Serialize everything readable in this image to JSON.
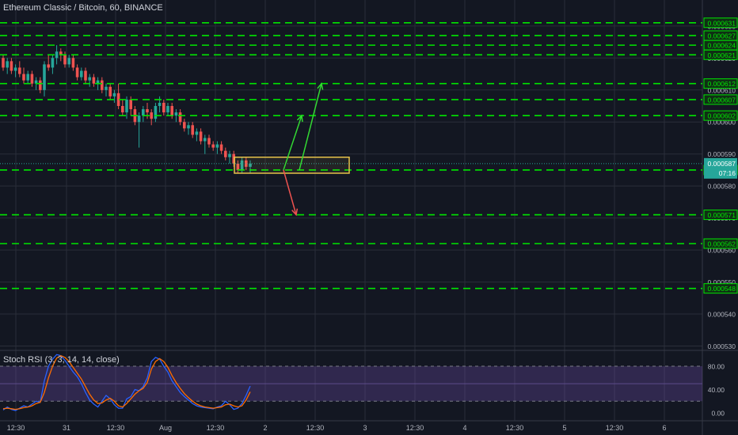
{
  "chart_title": "Ethereum Classic / Bitcoin, 60, BINANCE",
  "rsi_title": "Stoch RSI (3, 3, 14, 14, close)",
  "countdown": "07:16",
  "colors": {
    "background": "#131722",
    "grid": "#2a2e39",
    "up": "#26a69a",
    "down": "#ef5350",
    "level": "#00e600",
    "box": "#e6c24a",
    "arrow_up": "#33d933",
    "arrow_down": "#ef5350",
    "rsi_k": "#2962ff",
    "rsi_d": "#ff6d00",
    "rsi_band": "#7e57c2"
  },
  "chart_data": [
    {
      "type": "candlestick",
      "title": "Ethereum Classic / Bitcoin, 60, BINANCE",
      "ylim": [
        0.000528,
        0.000636
      ],
      "grid": true,
      "x_ticks": [
        "12:30",
        "31",
        "12:30",
        "Aug",
        "12:30",
        "2",
        "12:30",
        "3",
        "12:30",
        "4",
        "12:30",
        "5",
        "12:30",
        "6"
      ],
      "y_ticks": [
        "0.000530",
        "0.000540",
        "0.000550",
        "0.000560",
        "0.000570",
        "0.000580",
        "0.000590",
        "0.000600",
        "0.000610",
        "0.000620",
        "0.000630"
      ],
      "last_price": "0.000587",
      "horizontal_levels": [
        "0.000631",
        "0.000627",
        "0.000624",
        "0.000621",
        "0.000612",
        "0.000607",
        "0.000602",
        "0.000585",
        "0.000571",
        "0.000562",
        "0.000548"
      ],
      "candles": [
        [
          0.00062,
          0.000621,
          0.000616,
          0.000617
        ],
        [
          0.000617,
          0.00062,
          0.000615,
          0.000619
        ],
        [
          0.000619,
          0.00062,
          0.000615,
          0.000616
        ],
        [
          0.000616,
          0.000618,
          0.000614,
          0.000617
        ],
        [
          0.000617,
          0.000619,
          0.000614,
          0.000615
        ],
        [
          0.000615,
          0.000617,
          0.000612,
          0.000613
        ],
        [
          0.000613,
          0.000616,
          0.000612,
          0.000615
        ],
        [
          0.000615,
          0.000616,
          0.000611,
          0.000612
        ],
        [
          0.000612,
          0.000614,
          0.00061,
          0.000613
        ],
        [
          0.000613,
          0.000614,
          0.000609,
          0.00061
        ],
        [
          0.00061,
          0.000619,
          0.000608,
          0.000618
        ],
        [
          0.000618,
          0.000621,
          0.000616,
          0.000617
        ],
        [
          0.000617,
          0.000621,
          0.000615,
          0.00062
        ],
        [
          0.00062,
          0.000624,
          0.000618,
          0.000622
        ],
        [
          0.000622,
          0.000623,
          0.000619,
          0.000621
        ],
        [
          0.000621,
          0.000622,
          0.000617,
          0.000618
        ],
        [
          0.000618,
          0.000621,
          0.000617,
          0.00062
        ],
        [
          0.00062,
          0.000621,
          0.000616,
          0.000617
        ],
        [
          0.000617,
          0.000618,
          0.000613,
          0.000614
        ],
        [
          0.000614,
          0.000617,
          0.000613,
          0.000616
        ],
        [
          0.000616,
          0.000617,
          0.000612,
          0.000613
        ],
        [
          0.000613,
          0.000615,
          0.000611,
          0.000614
        ],
        [
          0.000614,
          0.000615,
          0.000611,
          0.000612
        ],
        [
          0.000612,
          0.000614,
          0.00061,
          0.000613
        ],
        [
          0.000613,
          0.000614,
          0.000609,
          0.00061
        ],
        [
          0.00061,
          0.000612,
          0.000608,
          0.000611
        ],
        [
          0.000611,
          0.000612,
          0.000607,
          0.000608
        ],
        [
          0.000608,
          0.00061,
          0.000606,
          0.000609
        ],
        [
          0.000609,
          0.000612,
          0.000604,
          0.000605
        ],
        [
          0.000605,
          0.000607,
          0.000602,
          0.000603
        ],
        [
          0.000603,
          0.000608,
          0.000601,
          0.000607
        ],
        [
          0.000607,
          0.000608,
          0.000602,
          0.000604
        ],
        [
          0.000604,
          0.000605,
          0.000599,
          0.0006
        ],
        [
          0.0006,
          0.000603,
          0.000592,
          0.000602
        ],
        [
          0.000602,
          0.000605,
          0.0006,
          0.000604
        ],
        [
          0.000604,
          0.000606,
          0.000601,
          0.000603
        ],
        [
          0.000603,
          0.000604,
          0.000599,
          0.000601
        ],
        [
          0.000601,
          0.000606,
          0.0006,
          0.000605
        ],
        [
          0.000605,
          0.000608,
          0.000603,
          0.000606
        ],
        [
          0.000606,
          0.000607,
          0.000602,
          0.000603
        ],
        [
          0.000603,
          0.000606,
          0.000602,
          0.000605
        ],
        [
          0.000605,
          0.000606,
          0.000601,
          0.000602
        ],
        [
          0.000602,
          0.000604,
          0.0006,
          0.000603
        ],
        [
          0.000603,
          0.000604,
          0.000599,
          0.0006
        ],
        [
          0.0006,
          0.000601,
          0.000597,
          0.000598
        ],
        [
          0.000598,
          0.0006,
          0.000596,
          0.000599
        ],
        [
          0.000599,
          0.0006,
          0.000595,
          0.000596
        ],
        [
          0.000596,
          0.000598,
          0.000594,
          0.000597
        ],
        [
          0.000597,
          0.000598,
          0.000593,
          0.000594
        ],
        [
          0.000594,
          0.000596,
          0.00059,
          0.000595
        ],
        [
          0.000595,
          0.000596,
          0.000592,
          0.000593
        ],
        [
          0.000593,
          0.000594,
          0.000591,
          0.000592
        ],
        [
          0.000592,
          0.000594,
          0.00059,
          0.000593
        ],
        [
          0.000593,
          0.000594,
          0.00059,
          0.000591
        ],
        [
          0.000591,
          0.000592,
          0.000588,
          0.000589
        ],
        [
          0.000589,
          0.000591,
          0.000587,
          0.00059
        ],
        [
          0.00059,
          0.000591,
          0.000586,
          0.000587
        ],
        [
          0.000587,
          0.000588,
          0.000584,
          0.000585
        ],
        [
          0.000585,
          0.000589,
          0.000584,
          0.000588
        ],
        [
          0.000588,
          0.000589,
          0.000585,
          0.000586
        ],
        [
          0.000586,
          0.000588,
          0.000584,
          0.000587
        ]
      ],
      "annotations": {
        "box": {
          "x_from": "Aug 12:30",
          "x_to": "2 12:30",
          "y_from": 0.000584,
          "y_to": 0.000589
        },
        "arrows_up": [
          {
            "from": [
              0.000585
            ],
            "to": [
              0.000602
            ]
          },
          {
            "from": [
              0.000585
            ],
            "to": [
              0.000612
            ]
          }
        ],
        "arrow_down": {
          "from": [
            0.000585
          ],
          "to": [
            0.000571
          ]
        }
      }
    },
    {
      "type": "line",
      "title": "Stoch RSI (3, 3, 14, 14, close)",
      "ylim": [
        -8,
        104
      ],
      "y_ticks": [
        "80.00",
        "40.00",
        "0.00"
      ],
      "band": [
        20,
        80
      ],
      "series": [
        {
          "name": "K",
          "values": [
            5,
            10,
            6,
            4,
            8,
            12,
            10,
            15,
            20,
            18,
            55,
            80,
            92,
            100,
            98,
            90,
            80,
            70,
            62,
            50,
            35,
            22,
            15,
            10,
            20,
            30,
            24,
            14,
            8,
            8,
            24,
            28,
            40,
            38,
            45,
            60,
            88,
            95,
            92,
            80,
            70,
            55,
            45,
            35,
            28,
            22,
            16,
            12,
            10,
            9,
            8,
            7,
            10,
            12,
            20,
            14,
            6,
            8,
            16,
            30,
            46
          ]
        },
        {
          "name": "D",
          "values": [
            7,
            8,
            7,
            6,
            7,
            9,
            10,
            12,
            16,
            18,
            35,
            60,
            80,
            94,
            98,
            95,
            88,
            78,
            68,
            58,
            45,
            32,
            22,
            16,
            17,
            22,
            25,
            20,
            12,
            10,
            16,
            24,
            32,
            38,
            42,
            52,
            75,
            88,
            93,
            88,
            78,
            64,
            52,
            42,
            33,
            26,
            20,
            15,
            12,
            10,
            9,
            8,
            9,
            10,
            14,
            15,
            12,
            10,
            12,
            22,
            36
          ]
        }
      ]
    }
  ]
}
